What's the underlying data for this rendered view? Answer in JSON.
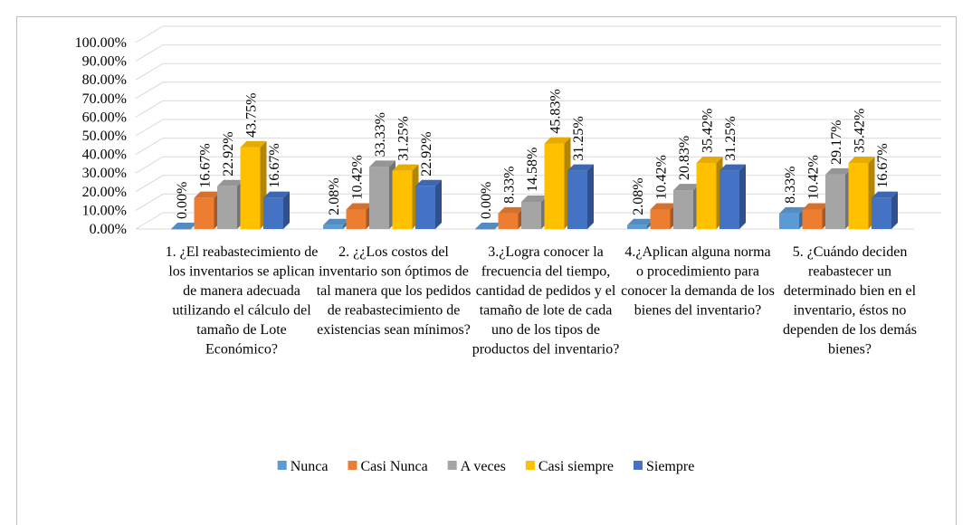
{
  "chart_data": {
    "type": "bar",
    "categories": [
      "1. ¿El reabastecimiento de los inventarios se aplican de manera adecuada utilizando el cálculo del tamaño de Lote Económico?",
      "2. ¿¿Los costos del inventario son óptimos de tal manera que los pedidos de reabastecimiento de existencias sean mínimos?",
      "3.¿Logra conocer la frecuencia del tiempo, cantidad de pedidos y el tamaño de lote de cada uno de los tipos de productos del inventario?",
      "4.¿Aplican alguna norma o procedimiento para conocer la demanda de los bienes del inventario?",
      "5. ¿Cuándo deciden reabastecer un determinado bien en el inventario, éstos no dependen de los demás bienes?"
    ],
    "series": [
      {
        "name": "Nunca",
        "color": "#5b9bd5",
        "values": [
          0,
          2.08,
          0,
          2.08,
          8.33
        ],
        "value_labels": [
          "0.00%",
          "2.08%",
          "0.00%",
          "2.08%",
          "8.33%"
        ]
      },
      {
        "name": "Casi Nunca",
        "color": "#ed7d31",
        "values": [
          16.67,
          10.42,
          8.33,
          10.42,
          10.42
        ],
        "value_labels": [
          "16.67%",
          "10.42%",
          "8.33%",
          "10.42%",
          "10.42%"
        ]
      },
      {
        "name": "A veces",
        "color": "#a5a5a5",
        "values": [
          22.92,
          33.33,
          14.58,
          20.83,
          29.17
        ],
        "value_labels": [
          "22.92%",
          "33.33%",
          "14.58%",
          "20.83%",
          "29.17%"
        ]
      },
      {
        "name": "Casi siempre",
        "color": "#ffc000",
        "values": [
          43.75,
          31.25,
          45.83,
          35.42,
          35.42
        ],
        "value_labels": [
          "43.75%",
          "31.25%",
          "45.83%",
          "35.42%",
          "35.42%"
        ]
      },
      {
        "name": "Siempre",
        "color": "#4472c4",
        "values": [
          16.67,
          22.92,
          31.25,
          31.25,
          16.67
        ],
        "value_labels": [
          "16.67%",
          "22.92%",
          "31.25%",
          "31.25%",
          "16.67%"
        ]
      }
    ],
    "ylim": [
      0,
      100
    ],
    "yticks": [
      {
        "value": 0,
        "label": "0.00%"
      },
      {
        "value": 10,
        "label": "10.00%"
      },
      {
        "value": 20,
        "label": "20.00%"
      },
      {
        "value": 30,
        "label": "30.00%"
      },
      {
        "value": 40,
        "label": "40.00%"
      },
      {
        "value": 50,
        "label": "50.00%"
      },
      {
        "value": 60,
        "label": "60.00%"
      },
      {
        "value": 70,
        "label": "70.00%"
      },
      {
        "value": 80,
        "label": "80.00%"
      },
      {
        "value": 90,
        "label": "90.00%"
      },
      {
        "value": 100,
        "label": "100.00%"
      }
    ],
    "grid": true,
    "legend": "bottom"
  }
}
